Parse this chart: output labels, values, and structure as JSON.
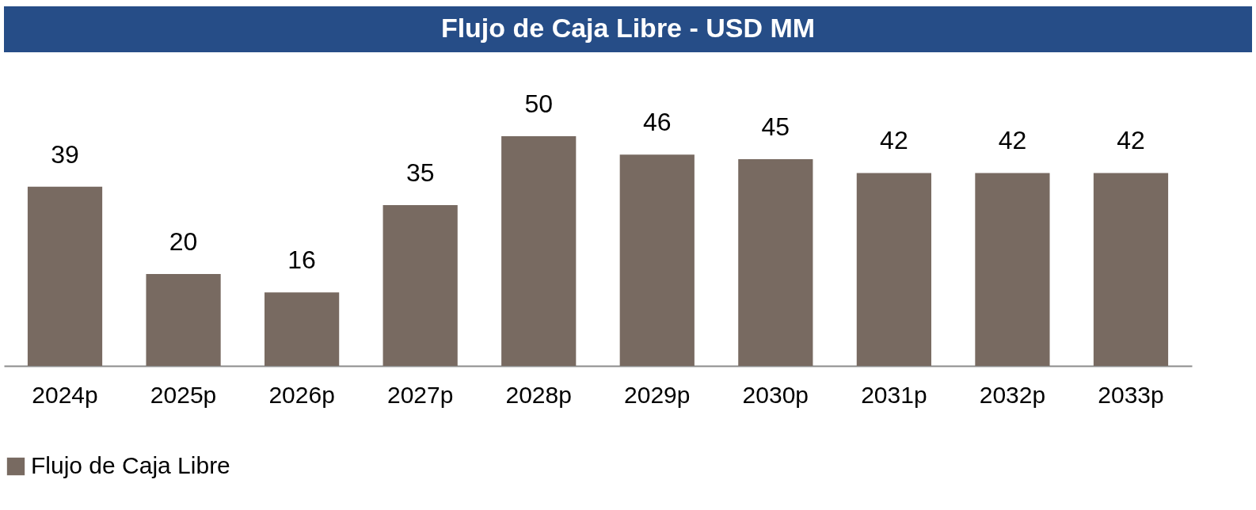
{
  "chart_data": {
    "type": "bar",
    "title": "Flujo de Caja Libre - USD MM",
    "categories": [
      "2024p",
      "2025p",
      "2026p",
      "2027p",
      "2028p",
      "2029p",
      "2030p",
      "2031p",
      "2032p",
      "2033p"
    ],
    "series": [
      {
        "name": "Flujo de Caja Libre",
        "color": "#786a61",
        "values": [
          39,
          20,
          16,
          35,
          50,
          46,
          45,
          42,
          42,
          42
        ]
      }
    ],
    "data_labels": true,
    "legend": "bottom",
    "grid": false
  }
}
